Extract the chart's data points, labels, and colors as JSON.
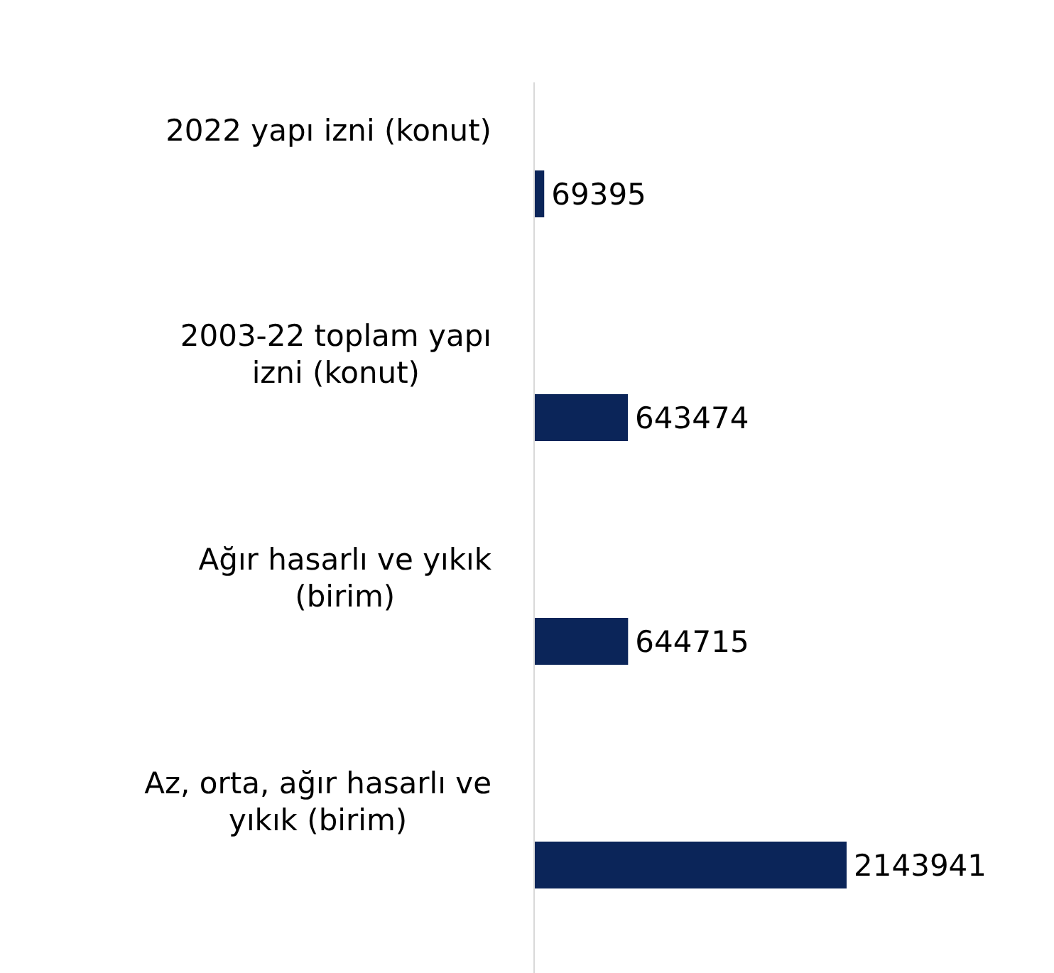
{
  "chart_data": {
    "type": "bar",
    "orientation": "horizontal",
    "categories": [
      "2022 yapı izni (konut)",
      "2003-22 toplam yapı izni (konut)",
      "Ağır hasarlı ve yıkık (birim)",
      "Az, orta, ağır hasarlı ve yıkık (birim)"
    ],
    "values": [
      69395,
      643474,
      644715,
      2143941
    ],
    "color": "#0b2559",
    "data_labels": true,
    "grid": false,
    "legend": false
  }
}
